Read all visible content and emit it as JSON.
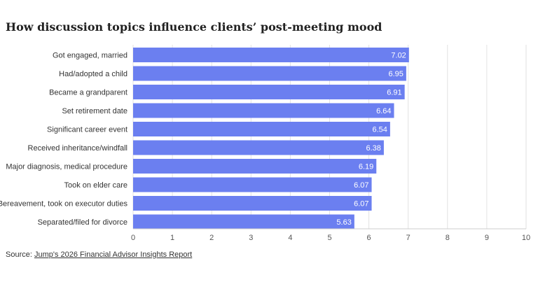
{
  "chart_data": {
    "type": "bar",
    "orientation": "horizontal",
    "title": "How discussion topics influence clients’ post-meeting mood",
    "categories": [
      "Got engaged, married",
      "Had/adopted a child",
      "Became a grandparent",
      "Set retirement date",
      "Significant career event",
      "Received inheritance/windfall",
      "Major diagnosis, medical procedure",
      "Took on elder care",
      "Bereavement, took on executor duties",
      "Separated/filed for divorce"
    ],
    "values": [
      7.02,
      6.95,
      6.91,
      6.64,
      6.54,
      6.38,
      6.19,
      6.07,
      6.07,
      5.63
    ],
    "value_labels": [
      "7.02",
      "6.95",
      "6.91",
      "6.64",
      "6.54",
      "6.38",
      "6.19",
      "6.07",
      "6.07",
      "5.63"
    ],
    "xlim": [
      0,
      10
    ],
    "x_ticks": [
      "0",
      "1",
      "2",
      "3",
      "4",
      "5",
      "6",
      "7",
      "8",
      "9",
      "10"
    ],
    "xlabel": "",
    "ylabel": "",
    "grid": "vertical",
    "colors": {
      "bar": "#6b7ff0",
      "grid": "#e2e2e2",
      "value_label": "#ffffff"
    }
  },
  "source": {
    "prefix": "Source: ",
    "link_text": "Jump's 2026 Financial Advisor Insights Report"
  }
}
